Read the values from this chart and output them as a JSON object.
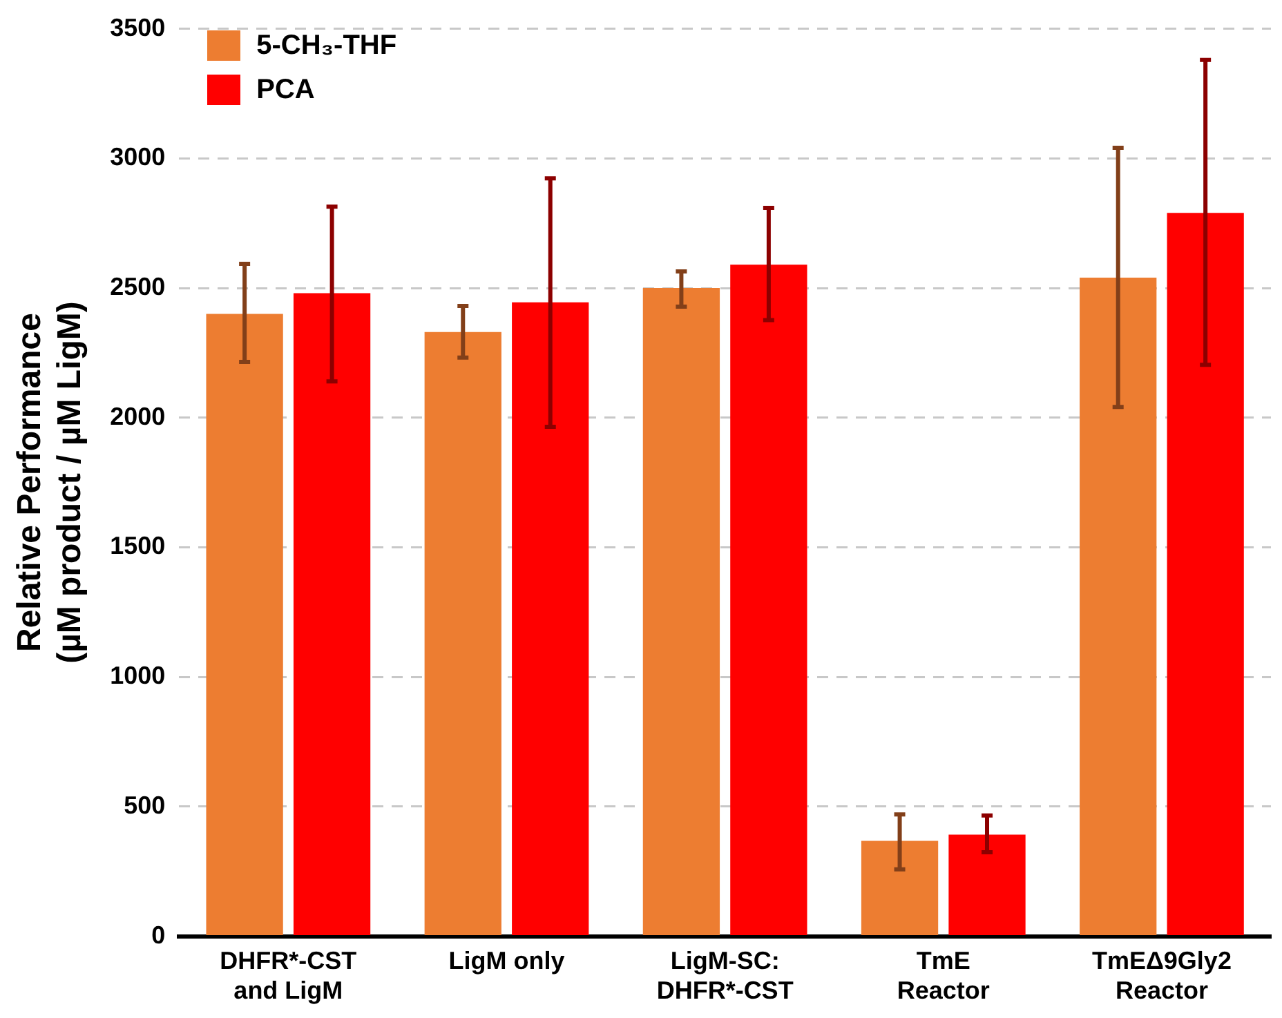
{
  "chart_data": {
    "type": "bar",
    "ylabel": "Relative Performance (µM product / µM LigM)",
    "categories": [
      "DHFR*-CST and LigM",
      "LigM only",
      "LigM-SC: DHFR*-CST",
      "TmE Reactor",
      "TmEΔ9Gly2 Reactor"
    ],
    "series": [
      {
        "name": "5-CH₃-THF",
        "color": "#ed7d31",
        "values": [
          2400,
          2330,
          2500,
          368,
          2540
        ],
        "errors": [
          [
            2215,
            2593
          ],
          [
            2232,
            2431
          ],
          [
            2428,
            2564
          ],
          [
            258,
            470
          ],
          [
            2041,
            3041
          ]
        ]
      },
      {
        "name": "PCA",
        "color": "#ff0000",
        "values": [
          2480,
          2445,
          2590,
          392,
          2790
        ],
        "errors": [
          [
            2140,
            2814
          ],
          [
            1965,
            2923
          ],
          [
            2376,
            2809
          ],
          [
            324,
            466
          ],
          [
            2204,
            3380
          ]
        ]
      }
    ],
    "ylim": [
      0,
      3500
    ],
    "yticks": [
      0,
      500,
      1000,
      1500,
      2000,
      2500,
      3000,
      3500
    ],
    "grid": "y",
    "legend": "top left"
  }
}
